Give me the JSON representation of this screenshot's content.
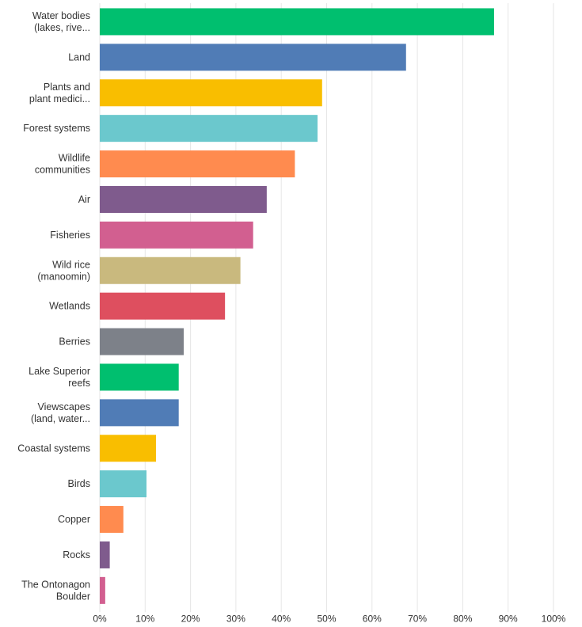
{
  "chart_data": {
    "type": "bar",
    "orientation": "horizontal",
    "title": "",
    "xlabel": "",
    "ylabel": "",
    "xlim": [
      0,
      100
    ],
    "grid": true,
    "categories": [
      [
        "Water bodies",
        "(lakes, rive..."
      ],
      [
        "Land"
      ],
      [
        "Plants and",
        "plant medici..."
      ],
      [
        "Forest systems"
      ],
      [
        "Wildlife",
        "communities"
      ],
      [
        "Air"
      ],
      [
        "Fisheries"
      ],
      [
        "Wild rice",
        "(manoomin)"
      ],
      [
        "Wetlands"
      ],
      [
        "Berries"
      ],
      [
        "Lake Superior",
        "reefs"
      ],
      [
        "Viewscapes",
        "(land, water..."
      ],
      [
        "Coastal systems"
      ],
      [
        "Birds"
      ],
      [
        "Copper"
      ],
      [
        "Rocks"
      ],
      [
        "The Ontonagon",
        "Boulder"
      ]
    ],
    "values": [
      86.9,
      67.5,
      49.0,
      48.0,
      43.0,
      36.8,
      33.8,
      31.0,
      27.6,
      18.5,
      17.4,
      17.4,
      12.4,
      10.3,
      5.2,
      2.2,
      1.2
    ],
    "colors": [
      "#00bf6f",
      "#507cb6",
      "#f9be00",
      "#6bc8cd",
      "#ff8b4f",
      "#7f5b8d",
      "#d25f90",
      "#c9b97e",
      "#de4f5f",
      "#7d8189",
      "#00bf6f",
      "#507cb6",
      "#f9be00",
      "#6bc8cd",
      "#ff8b4f",
      "#7f5b8d",
      "#d25f90"
    ],
    "ticks": [
      0,
      10,
      20,
      30,
      40,
      50,
      60,
      70,
      80,
      90,
      100
    ],
    "tick_labels": [
      "0%",
      "10%",
      "20%",
      "30%",
      "40%",
      "50%",
      "60%",
      "70%",
      "80%",
      "90%",
      "100%"
    ]
  }
}
